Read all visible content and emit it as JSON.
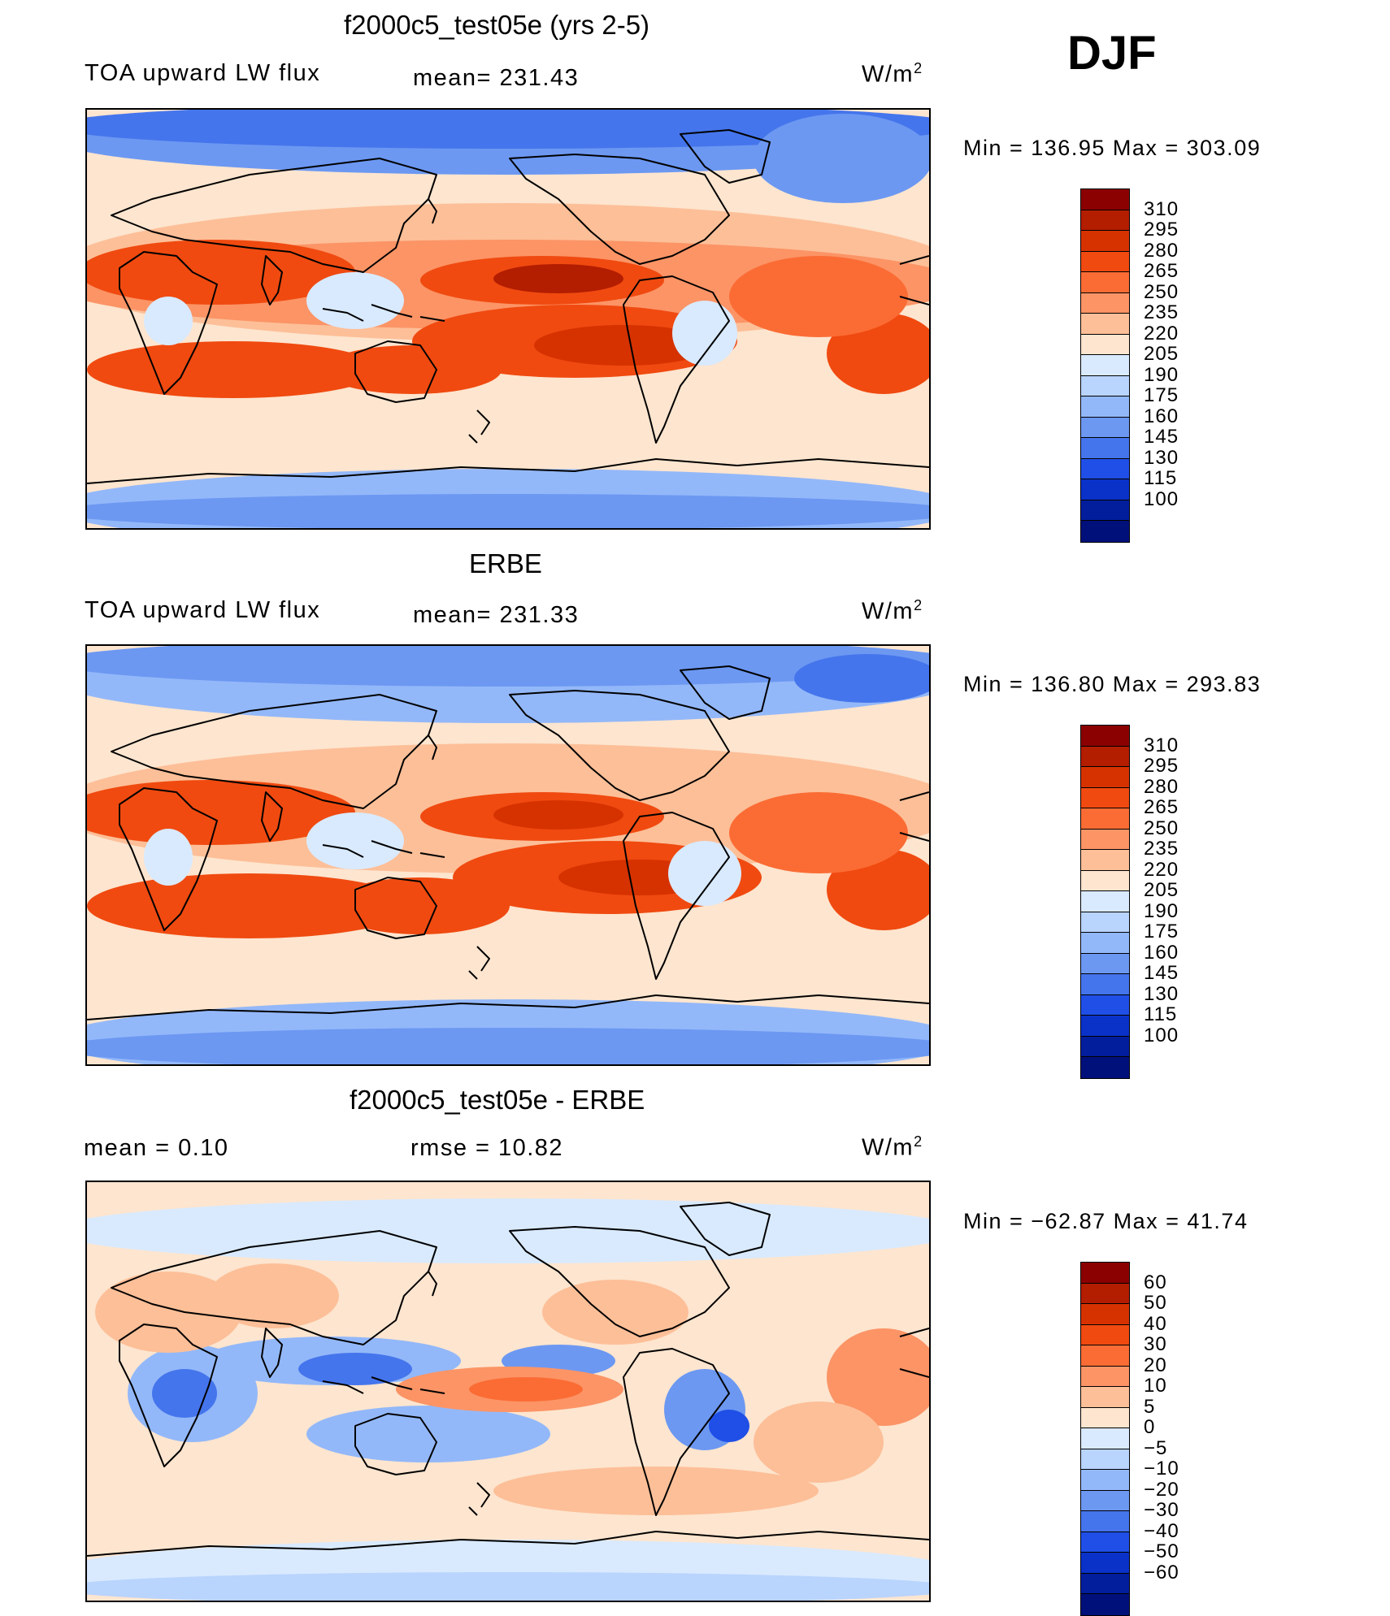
{
  "season": "DJF",
  "units": "W/m",
  "units_exp": "2",
  "palette_abs": [
    "#8b0000",
    "#b31d00",
    "#d63200",
    "#f04a10",
    "#fb6c34",
    "#fc9466",
    "#fdbf98",
    "#fde5cf",
    "#d9eaff",
    "#b9d4fd",
    "#93b8f9",
    "#6c98f2",
    "#4575ec",
    "#1f4fe6",
    "#0a32c8",
    "#021e9c",
    "#00107a"
  ],
  "palette_diff": [
    "#8b0000",
    "#b31d00",
    "#d63200",
    "#f04a10",
    "#fb6c34",
    "#fc9466",
    "#fdbf98",
    "#fde5cf",
    "#d9eaff",
    "#b9d4fd",
    "#93b8f9",
    "#6c98f2",
    "#4575ec",
    "#1f4fe6",
    "#0a32c8",
    "#021e9c",
    "#00107a"
  ],
  "panels": [
    {
      "title": "f2000c5_test05e (yrs 2-5)",
      "variable": "TOA upward LW flux",
      "mean_text": "mean= 231.43",
      "minmax_text": "Min  =  136.95  Max  =  303.09"
    },
    {
      "title": "ERBE",
      "variable": "TOA upward LW flux",
      "mean_text": "mean= 231.33",
      "minmax_text": "Min  =  136.80  Max  =  293.83"
    },
    {
      "title": "f2000c5_test05e - ERBE",
      "mean_text": "mean  =     0.10",
      "rmse_text": "rmse  =    10.82",
      "minmax_text": "Min  =  −62.87  Max  =    41.74"
    }
  ],
  "chart_data": [
    {
      "type": "heatmap",
      "title": "f2000c5_test05e (yrs 2-5)",
      "subtitle": "TOA upward LW flux",
      "season": "DJF",
      "mean": 231.43,
      "min": 136.95,
      "max": 303.09,
      "units": "W/m2",
      "colorbar_levels": [
        310,
        295,
        280,
        265,
        250,
        235,
        220,
        205,
        190,
        175,
        160,
        145,
        130,
        115,
        100
      ],
      "colorbar_labels": [
        "310",
        "295",
        "280",
        "265",
        "250",
        "235",
        "220",
        "205",
        "190",
        "175",
        "160",
        "145",
        "130",
        "115",
        "100"
      ]
    },
    {
      "type": "heatmap",
      "title": "ERBE",
      "subtitle": "TOA upward LW flux",
      "season": "DJF",
      "mean": 231.33,
      "min": 136.8,
      "max": 293.83,
      "units": "W/m2",
      "colorbar_levels": [
        310,
        295,
        280,
        265,
        250,
        235,
        220,
        205,
        190,
        175,
        160,
        145,
        130,
        115,
        100
      ],
      "colorbar_labels": [
        "310",
        "295",
        "280",
        "265",
        "250",
        "235",
        "220",
        "205",
        "190",
        "175",
        "160",
        "145",
        "130",
        "115",
        "100"
      ]
    },
    {
      "type": "heatmap",
      "title": "f2000c5_test05e - ERBE",
      "season": "DJF",
      "mean": 0.1,
      "rmse": 10.82,
      "min": -62.87,
      "max": 41.74,
      "units": "W/m2",
      "colorbar_levels": [
        60,
        50,
        40,
        30,
        20,
        10,
        5,
        0,
        -5,
        -10,
        -20,
        -30,
        -40,
        -50,
        -60
      ],
      "colorbar_labels": [
        "60",
        "50",
        "40",
        "30",
        "20",
        "10",
        "5",
        "0",
        "−5",
        "−10",
        "−20",
        "−30",
        "−40",
        "−50",
        "−60"
      ]
    }
  ]
}
